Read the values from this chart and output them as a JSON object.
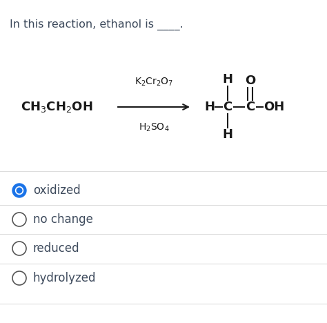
{
  "title_text": "In this reaction, ethanol is ____.",
  "title_color": "#3d4a5c",
  "title_fontsize": 11.5,
  "reactant_formula": "CH$_3$CH$_2$OH",
  "reagent_top": "K$_2$Cr$_2$O$_7$",
  "reagent_bottom": "H$_2$SO$_4$",
  "options": [
    "oxidized",
    "no change",
    "reduced",
    "hydrolyzed"
  ],
  "options_color": "#3d4a5c",
  "selected_index": 0,
  "bg_color": "#ffffff",
  "text_color": "#1a1a1a",
  "circle_selected_fill": "#1a73e8",
  "circle_selected_ring": "#1a73e8",
  "circle_unselected_color": "#555555",
  "font_size_chem": 12,
  "font_size_reagent": 10,
  "font_size_options": 12,
  "separator_color": "#dddddd",
  "arrow_color": "#1a1a1a"
}
